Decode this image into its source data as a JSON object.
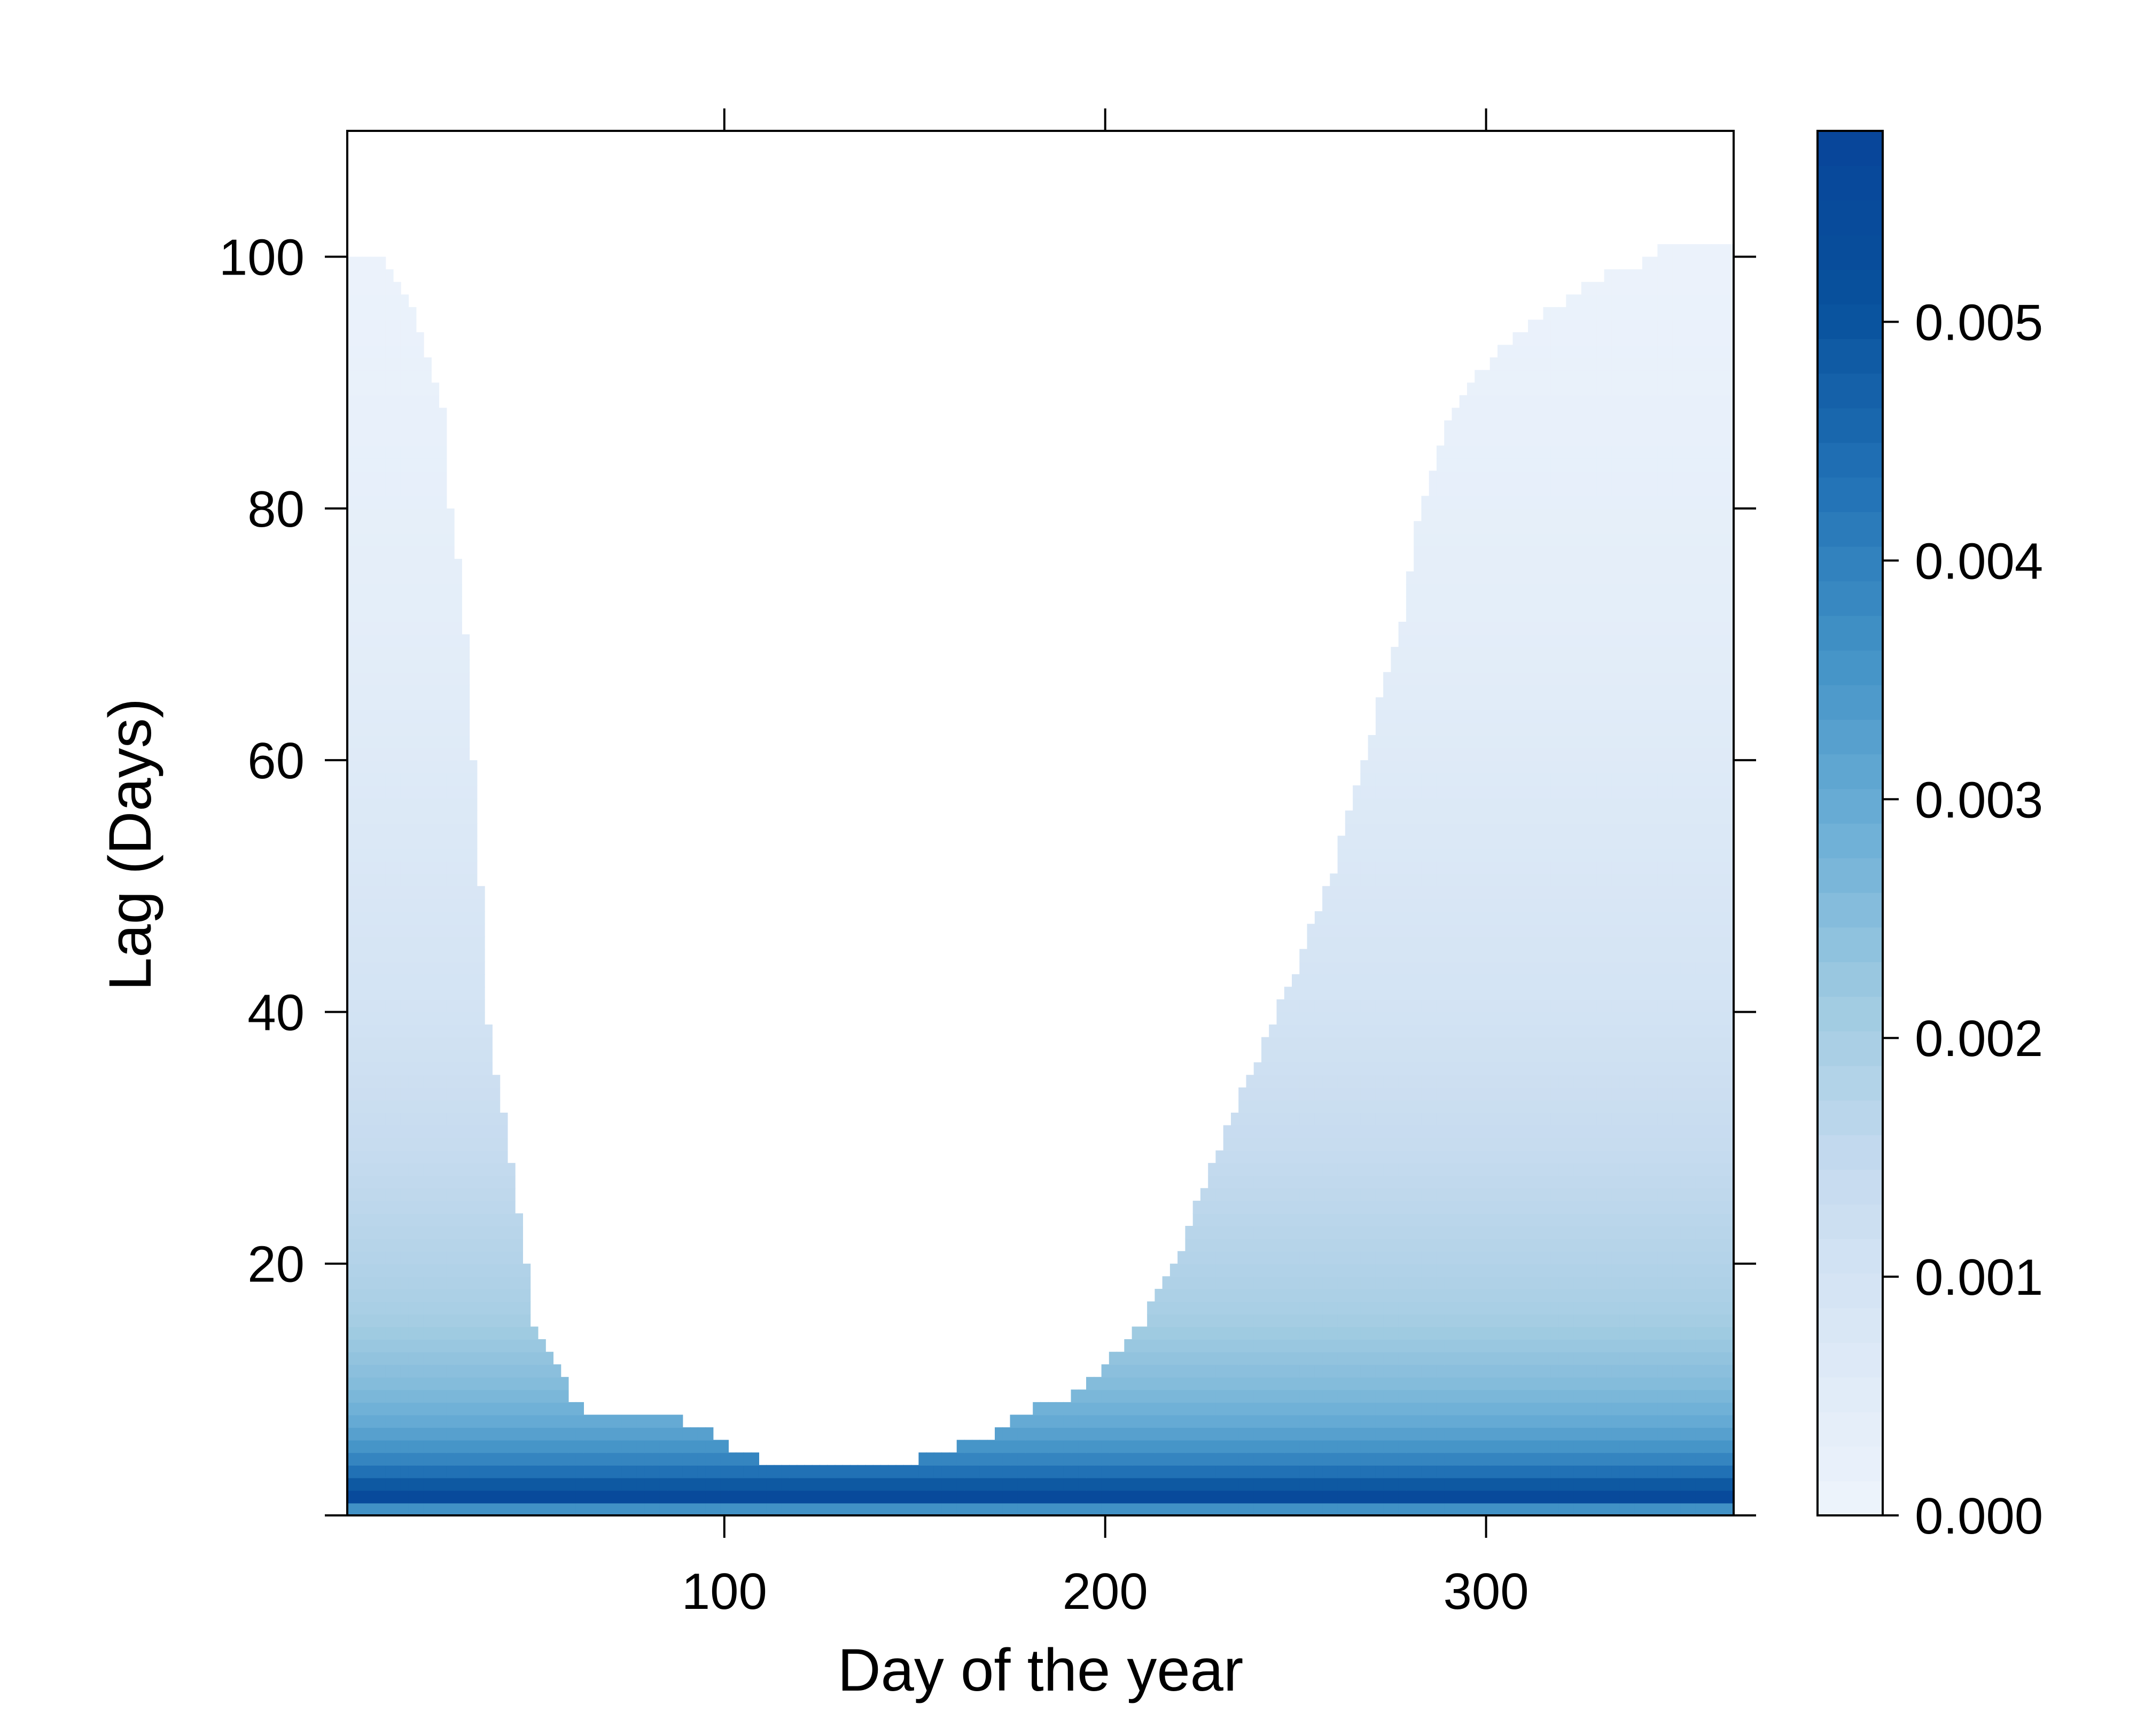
{
  "chart_data": {
    "type": "heatmap",
    "title": "",
    "xlabel": "Day of the year",
    "ylabel": "Lag (Days)",
    "xlim": [
      1,
      365
    ],
    "ylim": [
      0,
      110
    ],
    "x_ticks": [
      100,
      200,
      300
    ],
    "x_tick_labels": [
      "100",
      "200",
      "300"
    ],
    "y_ticks": [
      0,
      20,
      40,
      60,
      80,
      100
    ],
    "y_tick_labels": [
      "",
      "20",
      "40",
      "60",
      "80",
      "100"
    ],
    "grid": false,
    "lag_resolution": 1,
    "colorbar": {
      "min": 0.0,
      "max": 0.0058,
      "ticks": [
        0.0,
        0.001,
        0.002,
        0.003,
        0.004,
        0.005
      ],
      "tick_labels": [
        "0.000",
        "0.001",
        "0.002",
        "0.003",
        "0.004",
        "0.005"
      ],
      "palette": [
        "#eef4fc",
        "#dbe8f6",
        "#c6dbef",
        "#9ecae1",
        "#6baed6",
        "#4292c6",
        "#2171b5",
        "#08519c",
        "#08459a"
      ]
    },
    "support_boundary": {
      "description": "Maximum lag with non-zero value per day of year",
      "days": [
        1,
        12,
        20,
        27,
        28,
        31,
        33,
        34,
        36,
        37,
        40,
        44,
        48,
        50,
        53,
        55,
        57,
        60,
        64,
        70,
        80,
        90,
        98,
        102,
        110,
        115,
        130,
        150,
        160,
        170,
        180,
        190,
        198,
        205,
        210,
        215,
        220,
        225,
        230,
        240,
        250,
        260,
        270,
        278,
        283,
        286,
        288,
        290,
        295,
        300,
        310,
        320,
        330,
        340,
        345,
        350,
        360,
        365
      ],
      "max_lag": [
        100,
        99,
        94,
        87,
        80,
        73,
        66,
        60,
        50,
        40,
        35,
        28,
        20,
        15,
        13,
        12,
        11,
        9,
        8,
        8,
        8,
        7,
        6,
        5,
        4,
        4,
        4,
        4,
        5,
        6,
        8,
        9,
        11,
        13,
        15,
        18,
        21,
        25,
        29,
        36,
        43,
        51,
        62,
        71,
        80,
        83,
        85,
        87,
        89,
        91,
        94,
        96,
        98,
        99,
        100,
        101,
        101,
        101
      ]
    },
    "lag_profile": {
      "lag": [
        0,
        1,
        2,
        3,
        4,
        5,
        6,
        7,
        8,
        10,
        12,
        14,
        16,
        18,
        20,
        25,
        30,
        35,
        40,
        50,
        60,
        70,
        80,
        90,
        101
      ],
      "value": [
        0.0015,
        0.0058,
        0.0052,
        0.0046,
        0.0041,
        0.0037,
        0.0034,
        0.0031,
        0.0029,
        0.0026,
        0.0024,
        0.0022,
        0.002,
        0.0019,
        0.0018,
        0.0016,
        0.0014,
        0.0012,
        0.001,
        0.0008,
        0.0006,
        0.0004,
        0.0003,
        0.0002,
        0.0001
      ]
    }
  }
}
